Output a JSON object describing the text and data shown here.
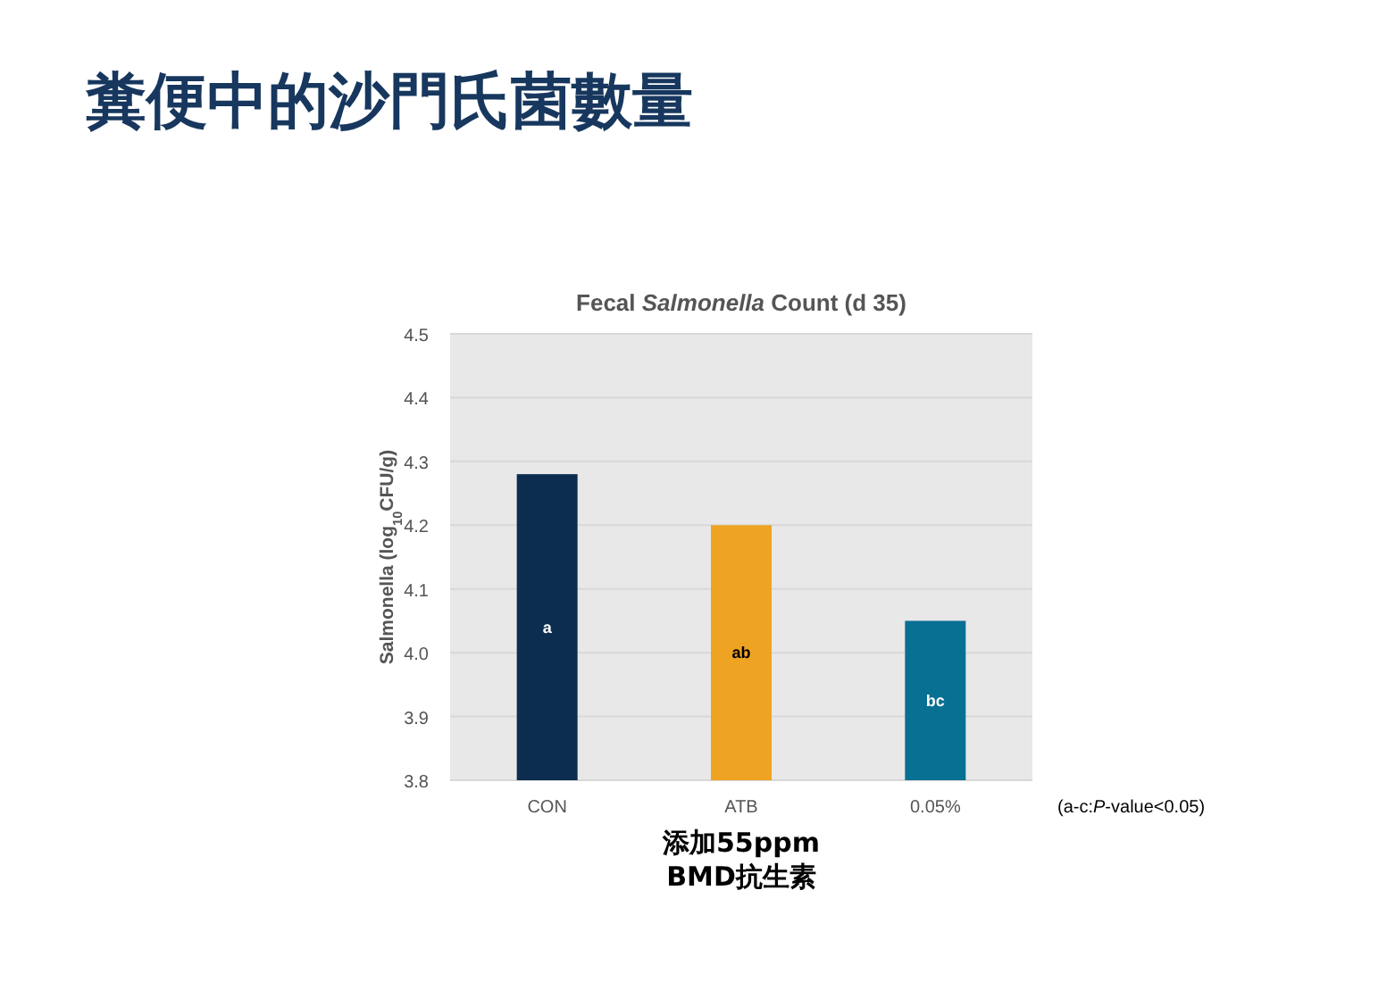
{
  "chart_data": {
    "type": "bar",
    "title": "糞便中的沙門氏菌數量",
    "subtitle": "Fecal *Salmonella* Count (d 35)",
    "ylabel": "Salmonella (log$_{10}$CFU/g)",
    "categories": [
      "CON",
      "ATB",
      "0.05%"
    ],
    "values": [
      4.28,
      4.2,
      4.05
    ],
    "colors": [
      "#0c2d4f",
      "#eea322",
      "#077093"
    ],
    "ylim": [
      3.8,
      4.5
    ],
    "yticks": [
      3.8,
      3.9,
      {
        "value": 4,
        "label": "4.0"
      },
      4.1,
      4.2,
      4.3,
      4.4,
      4.5
    ],
    "grid": "y",
    "annotations": [
      "a",
      "ab",
      "bc",
      "添加55ppm BMD抗生素",
      "(a-c:*P*-value<0.05)"
    ]
  }
}
